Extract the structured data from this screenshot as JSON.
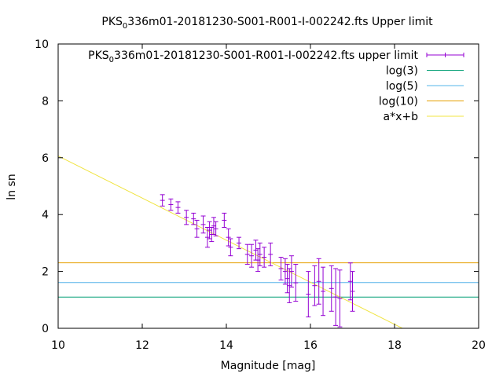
{
  "chart_data": {
    "type": "scatter",
    "title": "PKS_0336m01-20181230-S001-R001-I-002242.fts Upper limit",
    "title_main": "PKS",
    "title_sub": "0",
    "title_rest": "336m01-20181230-S001-R001-I-002242.fts Upper limit",
    "xlabel": "Magnitude [mag]",
    "ylabel": "ln sn",
    "xlim": [
      10,
      20
    ],
    "ylim": [
      0,
      10
    ],
    "xticks": [
      "10",
      "12",
      "14",
      "16",
      "18",
      "20"
    ],
    "yticks": [
      "0",
      "2",
      "4",
      "6",
      "8",
      "10"
    ],
    "legend_position": "top-right",
    "series": [
      {
        "name": "PKS_0336m01-20181230-S001-R001-I-002242.fts upper limit",
        "name_main": "PKS",
        "name_sub": "0",
        "name_rest": "336m01-20181230-S001-R001-I-002242.fts upper limit",
        "color": "#9400d3",
        "kind": "errorbars",
        "points": [
          {
            "x": 12.48,
            "y": 4.5,
            "err": 0.2
          },
          {
            "x": 12.68,
            "y": 4.35,
            "err": 0.2
          },
          {
            "x": 12.85,
            "y": 4.25,
            "err": 0.2
          },
          {
            "x": 13.05,
            "y": 3.9,
            "err": 0.25
          },
          {
            "x": 13.22,
            "y": 3.85,
            "err": 0.2
          },
          {
            "x": 13.3,
            "y": 3.5,
            "err": 0.3
          },
          {
            "x": 13.45,
            "y": 3.65,
            "err": 0.3
          },
          {
            "x": 13.55,
            "y": 3.2,
            "err": 0.35
          },
          {
            "x": 13.6,
            "y": 3.45,
            "err": 0.3
          },
          {
            "x": 13.65,
            "y": 3.3,
            "err": 0.25
          },
          {
            "x": 13.7,
            "y": 3.6,
            "err": 0.3
          },
          {
            "x": 13.75,
            "y": 3.5,
            "err": 0.25
          },
          {
            "x": 13.95,
            "y": 3.8,
            "err": 0.25
          },
          {
            "x": 14.05,
            "y": 3.2,
            "err": 0.3
          },
          {
            "x": 14.1,
            "y": 2.85,
            "err": 0.3
          },
          {
            "x": 14.3,
            "y": 3.0,
            "err": 0.2
          },
          {
            "x": 14.5,
            "y": 2.6,
            "err": 0.35
          },
          {
            "x": 14.6,
            "y": 2.55,
            "err": 0.4
          },
          {
            "x": 14.7,
            "y": 2.75,
            "err": 0.35
          },
          {
            "x": 14.75,
            "y": 2.4,
            "err": 0.4
          },
          {
            "x": 14.8,
            "y": 2.6,
            "err": 0.4
          },
          {
            "x": 14.9,
            "y": 2.5,
            "err": 0.35
          },
          {
            "x": 15.05,
            "y": 2.6,
            "err": 0.4
          },
          {
            "x": 15.3,
            "y": 2.1,
            "err": 0.4
          },
          {
            "x": 15.4,
            "y": 2.0,
            "err": 0.45
          },
          {
            "x": 15.45,
            "y": 1.75,
            "err": 0.5
          },
          {
            "x": 15.5,
            "y": 1.5,
            "err": 0.6
          },
          {
            "x": 15.55,
            "y": 2.0,
            "err": 0.55
          },
          {
            "x": 15.65,
            "y": 1.6,
            "err": 0.65
          },
          {
            "x": 15.95,
            "y": 1.2,
            "err": 0.8
          },
          {
            "x": 16.1,
            "y": 1.5,
            "err": 0.7
          },
          {
            "x": 16.2,
            "y": 1.65,
            "err": 0.8
          },
          {
            "x": 16.3,
            "y": 1.3,
            "err": 0.85
          },
          {
            "x": 16.5,
            "y": 1.4,
            "err": 0.8
          },
          {
            "x": 16.6,
            "y": 1.1,
            "err": 1.0
          },
          {
            "x": 16.7,
            "y": 1.05,
            "err": 1.0
          },
          {
            "x": 16.95,
            "y": 1.65,
            "err": 0.65
          },
          {
            "x": 17.0,
            "y": 1.3,
            "err": 0.7
          }
        ]
      },
      {
        "name": "log(3)",
        "color": "#009e73",
        "kind": "hline",
        "y": 1.0986
      },
      {
        "name": "log(5)",
        "color": "#56b4e9",
        "kind": "hline",
        "y": 1.6094
      },
      {
        "name": "log(10)",
        "color": "#e69f00",
        "kind": "hline",
        "y": 2.3026
      },
      {
        "name": "a*x+b",
        "color": "#f0e442",
        "kind": "line",
        "slope": -0.74,
        "intercept": 13.46
      }
    ]
  }
}
